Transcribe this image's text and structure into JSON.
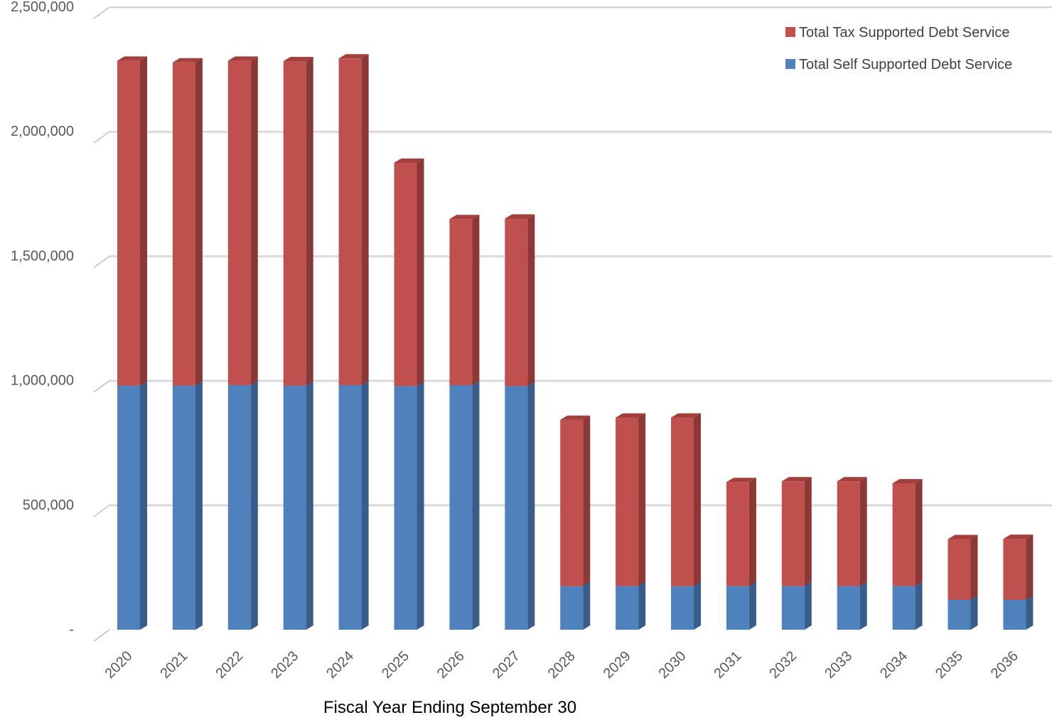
{
  "chart_data": {
    "type": "bar",
    "stacked": true,
    "three_d": true,
    "title": "",
    "xlabel": "Fiscal Year Ending September 30",
    "ylabel": "",
    "ylim": [
      0,
      2500000
    ],
    "yticks": [
      {
        "value": 0,
        "label": "-"
      },
      {
        "value": 500000,
        "label": "500,000"
      },
      {
        "value": 1000000,
        "label": "1,000,000"
      },
      {
        "value": 1500000,
        "label": "1,500,000"
      },
      {
        "value": 2000000,
        "label": "2,000,000"
      },
      {
        "value": 2500000,
        "label": "2,500,000"
      }
    ],
    "grid": true,
    "legend_position": "top-right",
    "categories": [
      "2020",
      "2021",
      "2022",
      "2023",
      "2024",
      "2025",
      "2026",
      "2027",
      "2028",
      "2029",
      "2030",
      "2031",
      "2032",
      "2033",
      "2034",
      "2035",
      "2036"
    ],
    "series": [
      {
        "name": "Total Self Supported Debt Service",
        "color": "#4F81BD",
        "side_color": "#385D8A",
        "values": [
          980000,
          980000,
          982000,
          980000,
          982000,
          978000,
          982000,
          978000,
          175000,
          175000,
          175000,
          175000,
          175000,
          175000,
          175000,
          120000,
          120000
        ]
      },
      {
        "name": "Total Tax Supported Debt Service",
        "color": "#C0504D",
        "side_color": "#8C3836",
        "values": [
          1305000,
          1298000,
          1303000,
          1303000,
          1312000,
          897000,
          667000,
          673000,
          668000,
          677000,
          677000,
          418000,
          421000,
          421000,
          413000,
          244000,
          245000
        ]
      }
    ]
  }
}
